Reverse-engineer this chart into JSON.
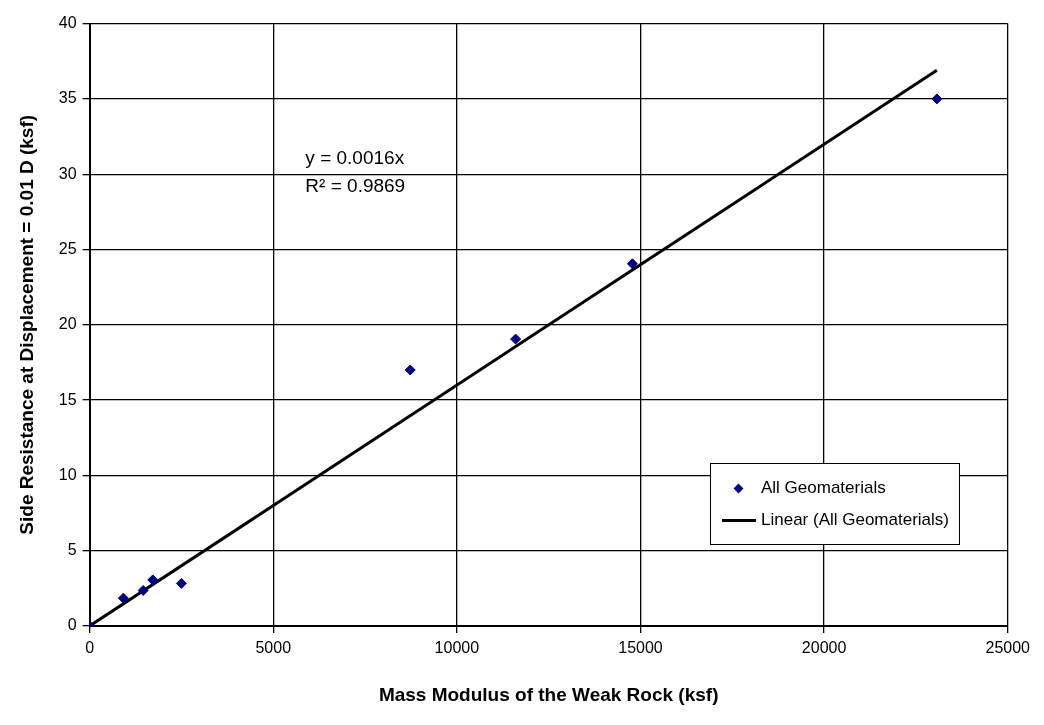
{
  "chart_data": {
    "type": "scatter",
    "xlabel": "Mass Modulus of the Weak Rock (ksf)",
    "ylabel": "Side Resistance at Displacement = 0.01 D (ksf)",
    "series": [
      {
        "name": "All Geomaterials",
        "color": "#000080",
        "marker": "diamond",
        "x": [
          0,
          920,
          1460,
          1720,
          2500,
          8730,
          11600,
          14780,
          23070
        ],
        "values": [
          0,
          1.85,
          2.36,
          3.06,
          2.83,
          17.0,
          19.05,
          24.05,
          35.0
        ]
      },
      {
        "name": "Linear (All Geomaterials)",
        "type": "line",
        "color": "#000000",
        "marker": "none",
        "x": [
          0,
          23070
        ],
        "values": [
          0,
          36.9
        ]
      }
    ],
    "xlim": [
      0,
      25000
    ],
    "xticks": [
      0,
      5000,
      10000,
      15000,
      20000,
      25000
    ],
    "ylim": [
      0,
      40
    ],
    "yticks": [
      0,
      5,
      10,
      15,
      20,
      25,
      30,
      35,
      40
    ],
    "grid": true,
    "legend": "bottom right",
    "annotations": [
      "y = 0.0016x",
      "R² = 0.9869"
    ]
  }
}
